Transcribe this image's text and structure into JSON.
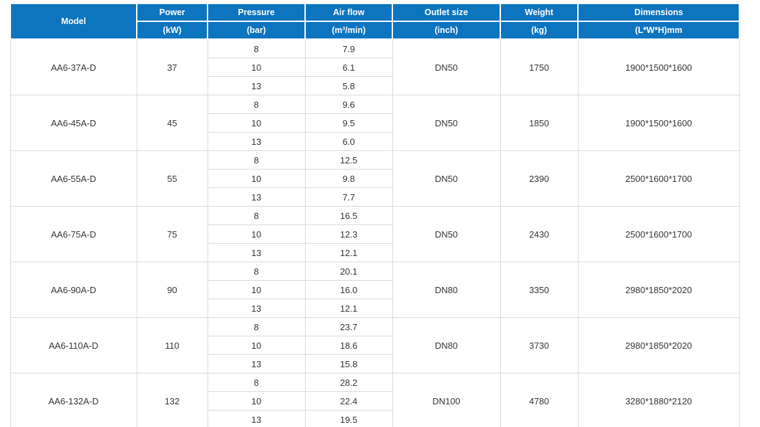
{
  "table": {
    "header_row1": {
      "model": "Model",
      "power": "Power",
      "pressure": "Pressure",
      "airflow": "Air flow",
      "outlet": "Outlet size",
      "weight": "Weight",
      "dimensions": "Dimensions"
    },
    "header_row2": {
      "power": "(kW)",
      "pressure": "(bar)",
      "airflow": "(m³/min)",
      "outlet": "(inch)",
      "weight": "(kg)",
      "dimensions": "(L*W*H)mm"
    },
    "groups": [
      {
        "model": "AA6-37A-D",
        "power": "37",
        "rows": [
          {
            "pressure": "8",
            "airflow": "7.9"
          },
          {
            "pressure": "10",
            "airflow": "6.1"
          },
          {
            "pressure": "13",
            "airflow": "5.8"
          }
        ],
        "outlet": "DN50",
        "weight": "1750",
        "dimensions": "1900*1500*1600"
      },
      {
        "model": "AA6-45A-D",
        "power": "45",
        "rows": [
          {
            "pressure": "8",
            "airflow": "9.6"
          },
          {
            "pressure": "10",
            "airflow": "9.5"
          },
          {
            "pressure": "13",
            "airflow": "6.0"
          }
        ],
        "outlet": "DN50",
        "weight": "1850",
        "dimensions": "1900*1500*1600"
      },
      {
        "model": "AA6-55A-D",
        "power": "55",
        "rows": [
          {
            "pressure": "8",
            "airflow": "12.5"
          },
          {
            "pressure": "10",
            "airflow": "9.8"
          },
          {
            "pressure": "13",
            "airflow": "7.7"
          }
        ],
        "outlet": "DN50",
        "weight": "2390",
        "dimensions": "2500*1600*1700"
      },
      {
        "model": "AA6-75A-D",
        "power": "75",
        "rows": [
          {
            "pressure": "8",
            "airflow": "16.5"
          },
          {
            "pressure": "10",
            "airflow": "12.3"
          },
          {
            "pressure": "13",
            "airflow": "12.1"
          }
        ],
        "outlet": "DN50",
        "weight": "2430",
        "dimensions": "2500*1600*1700"
      },
      {
        "model": "AA6-90A-D",
        "power": "90",
        "rows": [
          {
            "pressure": "8",
            "airflow": "20.1"
          },
          {
            "pressure": "10",
            "airflow": "16.0"
          },
          {
            "pressure": "13",
            "airflow": "12.1"
          }
        ],
        "outlet": "DN80",
        "weight": "3350",
        "dimensions": "2980*1850*2020"
      },
      {
        "model": "AA6-110A-D",
        "power": "110",
        "rows": [
          {
            "pressure": "8",
            "airflow": "23.7"
          },
          {
            "pressure": "10",
            "airflow": "18.6"
          },
          {
            "pressure": "13",
            "airflow": "15.8"
          }
        ],
        "outlet": "DN80",
        "weight": "3730",
        "dimensions": "2980*1850*2020"
      },
      {
        "model": "AA6-132A-D",
        "power": "132",
        "rows": [
          {
            "pressure": "8",
            "airflow": "28.2"
          },
          {
            "pressure": "10",
            "airflow": "22.4"
          },
          {
            "pressure": "13",
            "airflow": "19.5"
          }
        ],
        "outlet": "DN100",
        "weight": "4780",
        "dimensions": "3280*1880*2120"
      }
    ]
  },
  "colors": {
    "header_bg": "#0d74c0",
    "header_text": "#ffffff",
    "body_border": "#d9d9d9",
    "body_text": "#333333"
  },
  "chart_data": {
    "type": "table",
    "columns": [
      "Model",
      "Power (kW)",
      "Pressure (bar)",
      "Air flow (m³/min)",
      "Outlet size (inch)",
      "Weight (kg)",
      "Dimensions (L*W*H)mm"
    ],
    "rows": [
      [
        "AA6-37A-D",
        37,
        8,
        7.9,
        "DN50",
        1750,
        "1900*1500*1600"
      ],
      [
        "AA6-37A-D",
        37,
        10,
        6.1,
        "DN50",
        1750,
        "1900*1500*1600"
      ],
      [
        "AA6-37A-D",
        37,
        13,
        5.8,
        "DN50",
        1750,
        "1900*1500*1600"
      ],
      [
        "AA6-45A-D",
        45,
        8,
        9.6,
        "DN50",
        1850,
        "1900*1500*1600"
      ],
      [
        "AA6-45A-D",
        45,
        10,
        9.5,
        "DN50",
        1850,
        "1900*1500*1600"
      ],
      [
        "AA6-45A-D",
        45,
        13,
        6.0,
        "DN50",
        1850,
        "1900*1500*1600"
      ],
      [
        "AA6-55A-D",
        55,
        8,
        12.5,
        "DN50",
        2390,
        "2500*1600*1700"
      ],
      [
        "AA6-55A-D",
        55,
        10,
        9.8,
        "DN50",
        2390,
        "2500*1600*1700"
      ],
      [
        "AA6-55A-D",
        55,
        13,
        7.7,
        "DN50",
        2390,
        "2500*1600*1700"
      ],
      [
        "AA6-75A-D",
        75,
        8,
        16.5,
        "DN50",
        2430,
        "2500*1600*1700"
      ],
      [
        "AA6-75A-D",
        75,
        10,
        12.3,
        "DN50",
        2430,
        "2500*1600*1700"
      ],
      [
        "AA6-75A-D",
        75,
        13,
        12.1,
        "DN50",
        2430,
        "2500*1600*1700"
      ],
      [
        "AA6-90A-D",
        90,
        8,
        20.1,
        "DN80",
        3350,
        "2980*1850*2020"
      ],
      [
        "AA6-90A-D",
        90,
        10,
        16.0,
        "DN80",
        3350,
        "2980*1850*2020"
      ],
      [
        "AA6-90A-D",
        90,
        13,
        12.1,
        "DN80",
        3350,
        "2980*1850*2020"
      ],
      [
        "AA6-110A-D",
        110,
        8,
        23.7,
        "DN80",
        3730,
        "2980*1850*2020"
      ],
      [
        "AA6-110A-D",
        110,
        10,
        18.6,
        "DN80",
        3730,
        "2980*1850*2020"
      ],
      [
        "AA6-110A-D",
        110,
        13,
        15.8,
        "DN80",
        3730,
        "2980*1850*2020"
      ],
      [
        "AA6-132A-D",
        132,
        8,
        28.2,
        "DN100",
        4780,
        "3280*1880*2120"
      ],
      [
        "AA6-132A-D",
        132,
        10,
        22.4,
        "DN100",
        4780,
        "3280*1880*2120"
      ],
      [
        "AA6-132A-D",
        132,
        13,
        19.5,
        "DN100",
        4780,
        "3280*1880*2120"
      ]
    ]
  }
}
